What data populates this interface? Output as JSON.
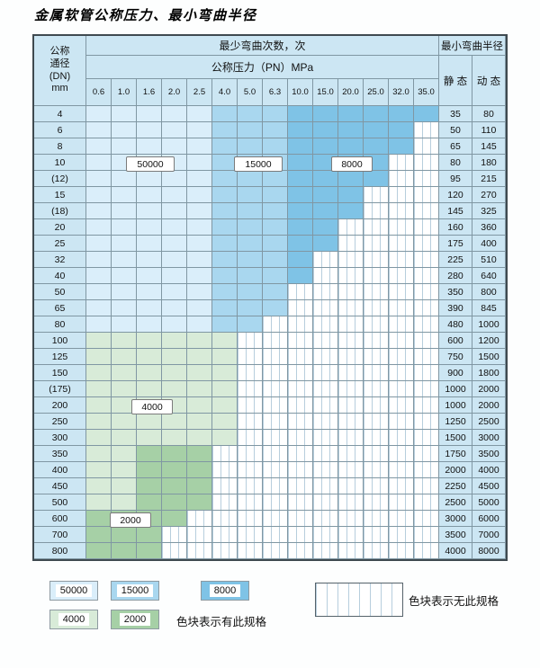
{
  "title": "金属软管公称压力、最小弯曲半径",
  "colors": {
    "panel": "#cce6f3",
    "b1": "#daeefa",
    "b2": "#a9d7ef",
    "b3": "#7fc3e6",
    "g1": "#d8ebd8",
    "g2": "#a6d0a6",
    "hatch": "#b7cedd"
  },
  "header": {
    "dn_lines": "公称\n通径\n(DN)\nmm",
    "bend_count": "最少弯曲次数，次",
    "pressure": "公称压力（PN）MPa",
    "pressure_values": [
      "0.6",
      "1.0",
      "1.6",
      "2.0",
      "2.5",
      "4.0",
      "5.0",
      "6.3",
      "10.0",
      "15.0",
      "20.0",
      "25.0",
      "32.0",
      "35.0"
    ],
    "radius": "最小弯曲半径",
    "static_label": "静 态",
    "dynamic_label": "动 态"
  },
  "rows": [
    {
      "dn": "4",
      "cells": "11111222333333",
      "static": "35",
      "dynamic": "80"
    },
    {
      "dn": "6",
      "cells": "11111222333330",
      "static": "50",
      "dynamic": "110"
    },
    {
      "dn": "8",
      "cells": "11111222333330",
      "static": "65",
      "dynamic": "145"
    },
    {
      "dn": "10",
      "cells": "11111222333300",
      "static": "80",
      "dynamic": "180"
    },
    {
      "dn": "(12)",
      "cells": "11111222333300",
      "static": "95",
      "dynamic": "215"
    },
    {
      "dn": "15",
      "cells": "11111222333000",
      "static": "120",
      "dynamic": "270"
    },
    {
      "dn": "(18)",
      "cells": "11111222333000",
      "static": "145",
      "dynamic": "325"
    },
    {
      "dn": "20",
      "cells": "11111222330000",
      "static": "160",
      "dynamic": "360"
    },
    {
      "dn": "25",
      "cells": "11111222330000",
      "static": "175",
      "dynamic": "400"
    },
    {
      "dn": "32",
      "cells": "11111222300000",
      "static": "225",
      "dynamic": "510"
    },
    {
      "dn": "40",
      "cells": "11111222300000",
      "static": "280",
      "dynamic": "640"
    },
    {
      "dn": "50",
      "cells": "11111222000000",
      "static": "350",
      "dynamic": "800"
    },
    {
      "dn": "65",
      "cells": "11111222000000",
      "static": "390",
      "dynamic": "845"
    },
    {
      "dn": "80",
      "cells": "11111220000000",
      "static": "480",
      "dynamic": "1000"
    },
    {
      "dn": "100",
      "cells": "44444400000000",
      "static": "600",
      "dynamic": "1200"
    },
    {
      "dn": "125",
      "cells": "44444400000000",
      "static": "750",
      "dynamic": "1500"
    },
    {
      "dn": "150",
      "cells": "44444400000000",
      "static": "900",
      "dynamic": "1800"
    },
    {
      "dn": "(175)",
      "cells": "44444400000000",
      "static": "1000",
      "dynamic": "2000"
    },
    {
      "dn": "200",
      "cells": "44444400000000",
      "static": "1000",
      "dynamic": "2000"
    },
    {
      "dn": "250",
      "cells": "44444400000000",
      "static": "1250",
      "dynamic": "2500"
    },
    {
      "dn": "300",
      "cells": "44444400000000",
      "static": "1500",
      "dynamic": "3000"
    },
    {
      "dn": "350",
      "cells": "44555000000000",
      "static": "1750",
      "dynamic": "3500"
    },
    {
      "dn": "400",
      "cells": "44555000000000",
      "static": "2000",
      "dynamic": "4000"
    },
    {
      "dn": "450",
      "cells": "44555000000000",
      "static": "2250",
      "dynamic": "4500"
    },
    {
      "dn": "500",
      "cells": "44555000000000",
      "static": "2500",
      "dynamic": "5000"
    },
    {
      "dn": "600",
      "cells": "55550000000000",
      "static": "3000",
      "dynamic": "6000"
    },
    {
      "dn": "700",
      "cells": "55500000000000",
      "static": "3500",
      "dynamic": "7000"
    },
    {
      "dn": "800",
      "cells": "55500000000000",
      "static": "4000",
      "dynamic": "8000"
    }
  ],
  "overlays": [
    {
      "text": "50000"
    },
    {
      "text": "15000"
    },
    {
      "text": "8000"
    },
    {
      "text": "4000"
    },
    {
      "text": "2000"
    }
  ],
  "legend": {
    "blue": [
      {
        "value": "50000",
        "cat": "b1"
      },
      {
        "value": "15000",
        "cat": "b2"
      },
      {
        "value": "8000",
        "cat": "b3"
      }
    ],
    "green": [
      {
        "value": "4000",
        "cat": "g1"
      },
      {
        "value": "2000",
        "cat": "g2"
      }
    ],
    "has_text": "色块表示有此规格",
    "none_text": "色块表示无此规格"
  }
}
